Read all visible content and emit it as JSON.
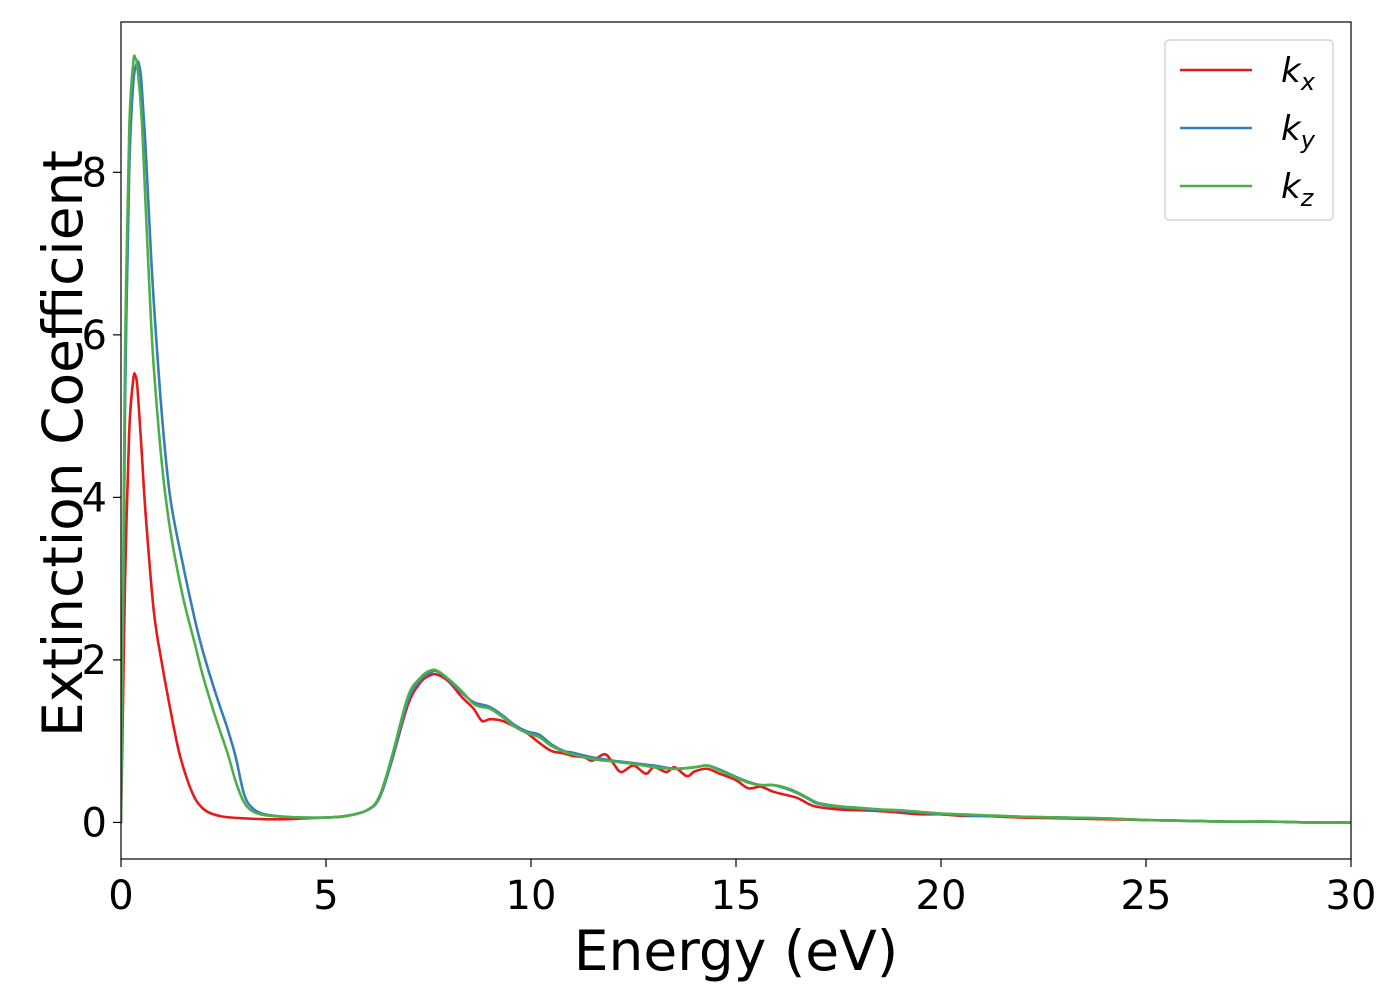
{
  "chart_data": {
    "type": "line",
    "title": "",
    "xlabel": "Energy (eV)",
    "ylabel": "Extinction Coefficient",
    "xlim": [
      0,
      30
    ],
    "ylim": [
      -0.45,
      9.85
    ],
    "xticks": [
      0,
      5,
      10,
      15,
      20,
      25,
      30
    ],
    "xtick_labels": [
      "0",
      "5",
      "10",
      "15",
      "20",
      "25",
      "30"
    ],
    "yticks": [
      0,
      2,
      4,
      6,
      8
    ],
    "ytick_labels": [
      "0",
      "2",
      "4",
      "6",
      "8"
    ],
    "grid": false,
    "legend_position": "top-right",
    "series": [
      {
        "name": "k_x",
        "label_main": "k",
        "label_sub": "x",
        "color": "#e41a1c",
        "x": [
          0,
          0.05,
          0.1,
          0.2,
          0.3,
          0.35,
          0.4,
          0.5,
          0.6,
          0.8,
          1.0,
          1.2,
          1.4,
          1.6,
          1.8,
          2.0,
          2.2,
          2.5,
          3.0,
          3.5,
          4.0,
          4.5,
          5.0,
          5.5,
          6.0,
          6.3,
          6.6,
          7.0,
          7.3,
          7.5,
          7.7,
          8.0,
          8.3,
          8.6,
          8.8,
          9.0,
          9.3,
          9.6,
          9.9,
          10.2,
          10.5,
          10.8,
          11.0,
          11.3,
          11.5,
          11.8,
          12.0,
          12.2,
          12.5,
          12.8,
          13.0,
          13.3,
          13.5,
          13.8,
          14.0,
          14.3,
          14.6,
          15.0,
          15.3,
          15.6,
          15.9,
          16.2,
          16.5,
          16.8,
          17.0,
          17.5,
          18.0,
          18.5,
          19.0,
          19.5,
          20.0,
          20.5,
          21.0,
          22.0,
          23.0,
          24.0,
          25.0,
          26.0,
          27.0,
          28.0,
          29.0,
          30.0
        ],
        "y": [
          0,
          1.5,
          3.0,
          4.8,
          5.45,
          5.5,
          5.35,
          4.6,
          3.8,
          2.6,
          1.95,
          1.4,
          0.9,
          0.55,
          0.3,
          0.17,
          0.11,
          0.07,
          0.05,
          0.04,
          0.04,
          0.05,
          0.06,
          0.08,
          0.15,
          0.3,
          0.75,
          1.45,
          1.72,
          1.8,
          1.82,
          1.73,
          1.55,
          1.4,
          1.25,
          1.27,
          1.25,
          1.18,
          1.1,
          0.98,
          0.88,
          0.85,
          0.82,
          0.8,
          0.76,
          0.84,
          0.73,
          0.62,
          0.7,
          0.6,
          0.68,
          0.62,
          0.68,
          0.57,
          0.63,
          0.66,
          0.6,
          0.52,
          0.42,
          0.44,
          0.38,
          0.34,
          0.3,
          0.22,
          0.19,
          0.16,
          0.15,
          0.14,
          0.12,
          0.1,
          0.1,
          0.08,
          0.08,
          0.06,
          0.05,
          0.04,
          0.03,
          0.02,
          0.01,
          0.01,
          0.0,
          0.0
        ]
      },
      {
        "name": "k_y",
        "label_main": "k",
        "label_sub": "y",
        "color": "#377eb8",
        "x": [
          0,
          0.05,
          0.1,
          0.2,
          0.3,
          0.4,
          0.45,
          0.5,
          0.6,
          0.7,
          0.8,
          1.0,
          1.2,
          1.5,
          1.8,
          2.0,
          2.3,
          2.6,
          2.8,
          3.0,
          3.2,
          3.5,
          4.0,
          4.5,
          5.0,
          5.5,
          6.0,
          6.3,
          6.6,
          7.0,
          7.3,
          7.5,
          7.7,
          8.0,
          8.3,
          8.6,
          8.8,
          9.0,
          9.3,
          9.6,
          9.9,
          10.2,
          10.5,
          10.8,
          11.0,
          11.5,
          12.0,
          12.5,
          13.0,
          13.5,
          14.0,
          14.3,
          14.6,
          15.0,
          15.3,
          15.6,
          15.9,
          16.2,
          16.5,
          16.8,
          17.0,
          17.5,
          18.0,
          18.5,
          19.0,
          19.5,
          20.0,
          20.5,
          21.0,
          22.0,
          23.0,
          24.0,
          25.0,
          26.0,
          27.0,
          28.0,
          29.0,
          30.0
        ],
        "y": [
          0,
          2.5,
          5.2,
          8.0,
          9.1,
          9.35,
          9.3,
          9.1,
          8.3,
          7.3,
          6.4,
          5.0,
          4.0,
          3.2,
          2.5,
          2.1,
          1.6,
          1.15,
          0.8,
          0.35,
          0.18,
          0.1,
          0.07,
          0.06,
          0.06,
          0.08,
          0.15,
          0.3,
          0.75,
          1.5,
          1.75,
          1.83,
          1.86,
          1.75,
          1.6,
          1.48,
          1.45,
          1.42,
          1.32,
          1.2,
          1.12,
          1.08,
          0.96,
          0.88,
          0.86,
          0.8,
          0.76,
          0.73,
          0.7,
          0.66,
          0.68,
          0.7,
          0.65,
          0.56,
          0.5,
          0.46,
          0.46,
          0.42,
          0.36,
          0.28,
          0.23,
          0.19,
          0.17,
          0.15,
          0.14,
          0.12,
          0.1,
          0.09,
          0.08,
          0.07,
          0.06,
          0.05,
          0.03,
          0.02,
          0.01,
          0.01,
          0.0,
          0.0
        ]
      },
      {
        "name": "k_z",
        "label_main": "k",
        "label_sub": "z",
        "color": "#4daf4a",
        "x": [
          0,
          0.05,
          0.1,
          0.2,
          0.3,
          0.35,
          0.4,
          0.5,
          0.6,
          0.7,
          0.8,
          1.0,
          1.2,
          1.5,
          1.8,
          2.0,
          2.3,
          2.6,
          2.8,
          3.0,
          3.2,
          3.5,
          4.0,
          4.5,
          5.0,
          5.5,
          6.0,
          6.3,
          6.6,
          7.0,
          7.3,
          7.5,
          7.7,
          8.0,
          8.3,
          8.6,
          8.8,
          9.0,
          9.3,
          9.6,
          9.9,
          10.2,
          10.5,
          10.8,
          11.0,
          11.5,
          12.0,
          12.5,
          13.0,
          13.5,
          14.0,
          14.3,
          14.6,
          15.0,
          15.3,
          15.6,
          15.9,
          16.2,
          16.5,
          16.8,
          17.0,
          17.5,
          18.0,
          18.5,
          19.0,
          19.5,
          20.0,
          20.5,
          21.0,
          22.0,
          23.0,
          24.0,
          25.0,
          26.0,
          27.0,
          28.0,
          29.0,
          30.0
        ],
        "y": [
          0,
          2.8,
          5.8,
          8.5,
          9.35,
          9.4,
          9.3,
          8.7,
          7.6,
          6.5,
          5.6,
          4.4,
          3.6,
          2.8,
          2.2,
          1.8,
          1.3,
          0.85,
          0.5,
          0.25,
          0.14,
          0.09,
          0.07,
          0.06,
          0.06,
          0.08,
          0.15,
          0.32,
          0.8,
          1.55,
          1.78,
          1.86,
          1.87,
          1.76,
          1.62,
          1.46,
          1.42,
          1.4,
          1.3,
          1.18,
          1.1,
          1.05,
          0.94,
          0.87,
          0.84,
          0.78,
          0.75,
          0.72,
          0.68,
          0.66,
          0.68,
          0.7,
          0.64,
          0.55,
          0.49,
          0.46,
          0.46,
          0.43,
          0.37,
          0.29,
          0.24,
          0.2,
          0.18,
          0.16,
          0.15,
          0.13,
          0.11,
          0.1,
          0.09,
          0.07,
          0.06,
          0.05,
          0.03,
          0.02,
          0.01,
          0.01,
          0.0,
          0.0
        ]
      }
    ]
  }
}
